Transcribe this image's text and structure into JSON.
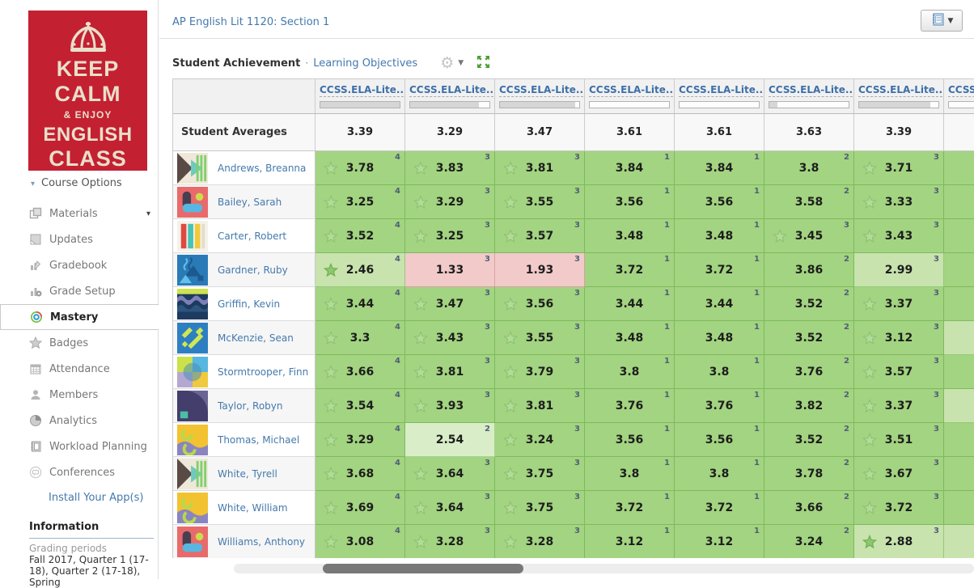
{
  "colors": {
    "accent_blue": "#4479ad",
    "green": "#a3d481",
    "light_green": "#c8e3ae",
    "pink": "#f2caca",
    "poster_red": "#c32032",
    "poster_cream": "#e9dfca"
  },
  "sidebar": {
    "poster_lines": {
      "l1": "KEEP",
      "l2": "CALM",
      "l3": "& ENJOY",
      "l4": "ENGLISH",
      "l5": "CLASS"
    },
    "course_options": "Course Options",
    "nav": [
      {
        "label": "Materials",
        "icon": "materials-icon",
        "active": false,
        "has_caret": true
      },
      {
        "label": "Updates",
        "icon": "updates-icon",
        "active": false,
        "has_caret": false
      },
      {
        "label": "Gradebook",
        "icon": "gradebook-icon",
        "active": false,
        "has_caret": false
      },
      {
        "label": "Grade Setup",
        "icon": "grade-setup-icon",
        "active": false,
        "has_caret": false
      },
      {
        "label": "Mastery",
        "icon": "mastery-icon",
        "active": true,
        "has_caret": false
      },
      {
        "label": "Badges",
        "icon": "badges-icon",
        "active": false,
        "has_caret": false
      },
      {
        "label": "Attendance",
        "icon": "attendance-icon",
        "active": false,
        "has_caret": false
      },
      {
        "label": "Members",
        "icon": "members-icon",
        "active": false,
        "has_caret": false
      },
      {
        "label": "Analytics",
        "icon": "analytics-icon",
        "active": false,
        "has_caret": false
      },
      {
        "label": "Workload Planning",
        "icon": "workload-icon",
        "active": false,
        "has_caret": false
      },
      {
        "label": "Conferences",
        "icon": "conferences-icon",
        "active": false,
        "has_caret": false
      }
    ],
    "install_link": "Install Your App(s)",
    "information": {
      "heading": "Information",
      "grading_periods_label": "Grading periods",
      "grading_periods_value": "Fall 2017, Quarter 1 (17-18), Quarter 2 (17-18), Spring"
    }
  },
  "header": {
    "course_title": "AP English Lit 1120: Section 1"
  },
  "toolbar": {
    "title": "Student Achievement",
    "separator": "·",
    "link": "Learning Objectives"
  },
  "table": {
    "averages_label": "Student Averages",
    "columns": [
      {
        "label": "CCSS.ELA-Lite...",
        "progress": 100
      },
      {
        "label": "CCSS.ELA-Lite...",
        "progress": 87
      },
      {
        "label": "CCSS.ELA-Lite...",
        "progress": 95
      },
      {
        "label": "CCSS.ELA-Lite...",
        "progress": 0
      },
      {
        "label": "CCSS.ELA-Lite...",
        "progress": 0
      },
      {
        "label": "CCSS.ELA-Lite...",
        "progress": 10
      },
      {
        "label": "CCSS.ELA-Lite...",
        "progress": 90
      },
      {
        "label": "CCSS.ELA-Lite...",
        "progress": 0
      }
    ],
    "averages": [
      "3.39",
      "3.29",
      "3.47",
      "3.61",
      "3.61",
      "3.63",
      "3.39",
      ""
    ],
    "students": [
      {
        "name": "Andrews, Breanna",
        "avatar": "a1",
        "cells": [
          {
            "star": "outline",
            "value": "3.78",
            "sup": "4",
            "bg": "green"
          },
          {
            "star": "outline",
            "value": "3.83",
            "sup": "3",
            "bg": "green"
          },
          {
            "star": "outline",
            "value": "3.81",
            "sup": "3",
            "bg": "green"
          },
          {
            "star": "none",
            "value": "3.84",
            "sup": "1",
            "bg": "green"
          },
          {
            "star": "none",
            "value": "3.84",
            "sup": "1",
            "bg": "green"
          },
          {
            "star": "none",
            "value": "3.8",
            "sup": "2",
            "bg": "green"
          },
          {
            "star": "outline",
            "value": "3.71",
            "sup": "3",
            "bg": "green"
          },
          {
            "star": "none",
            "value": "",
            "sup": "",
            "bg": "green"
          }
        ]
      },
      {
        "name": "Bailey, Sarah",
        "avatar": "a2",
        "cells": [
          {
            "star": "outline",
            "value": "3.25",
            "sup": "4",
            "bg": "green"
          },
          {
            "star": "outline",
            "value": "3.29",
            "sup": "3",
            "bg": "green"
          },
          {
            "star": "outline",
            "value": "3.55",
            "sup": "3",
            "bg": "green"
          },
          {
            "star": "none",
            "value": "3.56",
            "sup": "1",
            "bg": "green"
          },
          {
            "star": "none",
            "value": "3.56",
            "sup": "1",
            "bg": "green"
          },
          {
            "star": "none",
            "value": "3.58",
            "sup": "2",
            "bg": "green"
          },
          {
            "star": "outline",
            "value": "3.33",
            "sup": "3",
            "bg": "green"
          },
          {
            "star": "none",
            "value": "",
            "sup": "",
            "bg": "green"
          }
        ]
      },
      {
        "name": "Carter, Robert",
        "avatar": "a3",
        "cells": [
          {
            "star": "outline",
            "value": "3.52",
            "sup": "4",
            "bg": "green"
          },
          {
            "star": "outline",
            "value": "3.25",
            "sup": "3",
            "bg": "green"
          },
          {
            "star": "outline",
            "value": "3.57",
            "sup": "3",
            "bg": "green"
          },
          {
            "star": "none",
            "value": "3.48",
            "sup": "1",
            "bg": "green"
          },
          {
            "star": "none",
            "value": "3.48",
            "sup": "1",
            "bg": "green"
          },
          {
            "star": "outline",
            "value": "3.45",
            "sup": "3",
            "bg": "green"
          },
          {
            "star": "outline",
            "value": "3.43",
            "sup": "3",
            "bg": "green"
          },
          {
            "star": "none",
            "value": "",
            "sup": "",
            "bg": "green"
          }
        ]
      },
      {
        "name": "Gardner, Ruby",
        "avatar": "a4",
        "cells": [
          {
            "star": "filled",
            "value": "2.46",
            "sup": "4",
            "bg": "light"
          },
          {
            "star": "none",
            "value": "1.33",
            "sup": "3",
            "bg": "pink"
          },
          {
            "star": "none",
            "value": "1.93",
            "sup": "3",
            "bg": "pink"
          },
          {
            "star": "none",
            "value": "3.72",
            "sup": "1",
            "bg": "green"
          },
          {
            "star": "none",
            "value": "3.72",
            "sup": "1",
            "bg": "green"
          },
          {
            "star": "none",
            "value": "3.86",
            "sup": "2",
            "bg": "green"
          },
          {
            "star": "none",
            "value": "2.99",
            "sup": "3",
            "bg": "light"
          },
          {
            "star": "none",
            "value": "",
            "sup": "",
            "bg": "green"
          }
        ]
      },
      {
        "name": "Griffin, Kevin",
        "avatar": "a5",
        "cells": [
          {
            "star": "outline",
            "value": "3.44",
            "sup": "4",
            "bg": "green"
          },
          {
            "star": "outline",
            "value": "3.47",
            "sup": "3",
            "bg": "green"
          },
          {
            "star": "outline",
            "value": "3.56",
            "sup": "3",
            "bg": "green"
          },
          {
            "star": "none",
            "value": "3.44",
            "sup": "1",
            "bg": "green"
          },
          {
            "star": "none",
            "value": "3.44",
            "sup": "1",
            "bg": "green"
          },
          {
            "star": "none",
            "value": "3.52",
            "sup": "2",
            "bg": "green"
          },
          {
            "star": "outline",
            "value": "3.37",
            "sup": "3",
            "bg": "green"
          },
          {
            "star": "none",
            "value": "",
            "sup": "",
            "bg": "green"
          }
        ]
      },
      {
        "name": "McKenzie, Sean",
        "avatar": "a6",
        "cells": [
          {
            "star": "outline",
            "value": "3.3",
            "sup": "4",
            "bg": "green"
          },
          {
            "star": "outline",
            "value": "3.43",
            "sup": "3",
            "bg": "green"
          },
          {
            "star": "outline",
            "value": "3.55",
            "sup": "3",
            "bg": "green"
          },
          {
            "star": "none",
            "value": "3.48",
            "sup": "1",
            "bg": "green"
          },
          {
            "star": "none",
            "value": "3.48",
            "sup": "1",
            "bg": "green"
          },
          {
            "star": "none",
            "value": "3.52",
            "sup": "2",
            "bg": "green"
          },
          {
            "star": "outline",
            "value": "3.12",
            "sup": "3",
            "bg": "green"
          },
          {
            "star": "none",
            "value": "",
            "sup": "",
            "bg": "light"
          }
        ]
      },
      {
        "name": "Stormtrooper, Finn",
        "avatar": "a7",
        "cells": [
          {
            "star": "outline",
            "value": "3.66",
            "sup": "4",
            "bg": "green"
          },
          {
            "star": "outline",
            "value": "3.81",
            "sup": "3",
            "bg": "green"
          },
          {
            "star": "outline",
            "value": "3.79",
            "sup": "3",
            "bg": "green"
          },
          {
            "star": "none",
            "value": "3.8",
            "sup": "1",
            "bg": "green"
          },
          {
            "star": "none",
            "value": "3.8",
            "sup": "1",
            "bg": "green"
          },
          {
            "star": "none",
            "value": "3.76",
            "sup": "2",
            "bg": "green"
          },
          {
            "star": "outline",
            "value": "3.57",
            "sup": "3",
            "bg": "green"
          },
          {
            "star": "none",
            "value": "",
            "sup": "",
            "bg": "green"
          }
        ]
      },
      {
        "name": "Taylor, Robyn",
        "avatar": "a8",
        "cells": [
          {
            "star": "outline",
            "value": "3.54",
            "sup": "4",
            "bg": "green"
          },
          {
            "star": "outline",
            "value": "3.93",
            "sup": "3",
            "bg": "green"
          },
          {
            "star": "outline",
            "value": "3.81",
            "sup": "3",
            "bg": "green"
          },
          {
            "star": "none",
            "value": "3.76",
            "sup": "1",
            "bg": "green"
          },
          {
            "star": "none",
            "value": "3.76",
            "sup": "1",
            "bg": "green"
          },
          {
            "star": "none",
            "value": "3.82",
            "sup": "2",
            "bg": "green"
          },
          {
            "star": "outline",
            "value": "3.37",
            "sup": "3",
            "bg": "green"
          },
          {
            "star": "none",
            "value": "",
            "sup": "",
            "bg": "light"
          }
        ]
      },
      {
        "name": "Thomas, Michael",
        "avatar": "a9",
        "cells": [
          {
            "star": "outline",
            "value": "3.29",
            "sup": "4",
            "bg": "green"
          },
          {
            "star": "none",
            "value": "2.54",
            "sup": "2",
            "bg": "lighter"
          },
          {
            "star": "outline",
            "value": "3.24",
            "sup": "3",
            "bg": "green"
          },
          {
            "star": "none",
            "value": "3.56",
            "sup": "1",
            "bg": "green"
          },
          {
            "star": "none",
            "value": "3.56",
            "sup": "1",
            "bg": "green"
          },
          {
            "star": "none",
            "value": "3.52",
            "sup": "2",
            "bg": "green"
          },
          {
            "star": "outline",
            "value": "3.51",
            "sup": "3",
            "bg": "green"
          },
          {
            "star": "none",
            "value": "",
            "sup": "",
            "bg": "green"
          }
        ]
      },
      {
        "name": "White, Tyrell",
        "avatar": "a1",
        "cells": [
          {
            "star": "outline",
            "value": "3.68",
            "sup": "4",
            "bg": "green"
          },
          {
            "star": "outline",
            "value": "3.64",
            "sup": "3",
            "bg": "green"
          },
          {
            "star": "outline",
            "value": "3.75",
            "sup": "3",
            "bg": "green"
          },
          {
            "star": "none",
            "value": "3.8",
            "sup": "1",
            "bg": "green"
          },
          {
            "star": "none",
            "value": "3.8",
            "sup": "1",
            "bg": "green"
          },
          {
            "star": "none",
            "value": "3.78",
            "sup": "2",
            "bg": "green"
          },
          {
            "star": "outline",
            "value": "3.67",
            "sup": "3",
            "bg": "green"
          },
          {
            "star": "none",
            "value": "",
            "sup": "",
            "bg": "green"
          }
        ]
      },
      {
        "name": "White, William",
        "avatar": "a9",
        "cells": [
          {
            "star": "outline",
            "value": "3.69",
            "sup": "4",
            "bg": "green"
          },
          {
            "star": "outline",
            "value": "3.64",
            "sup": "3",
            "bg": "green"
          },
          {
            "star": "outline",
            "value": "3.75",
            "sup": "3",
            "bg": "green"
          },
          {
            "star": "none",
            "value": "3.72",
            "sup": "1",
            "bg": "green"
          },
          {
            "star": "none",
            "value": "3.72",
            "sup": "1",
            "bg": "green"
          },
          {
            "star": "none",
            "value": "3.66",
            "sup": "2",
            "bg": "green"
          },
          {
            "star": "outline",
            "value": "3.72",
            "sup": "3",
            "bg": "green"
          },
          {
            "star": "none",
            "value": "",
            "sup": "",
            "bg": "green"
          }
        ]
      },
      {
        "name": "Williams, Anthony",
        "avatar": "a2",
        "cells": [
          {
            "star": "outline",
            "value": "3.08",
            "sup": "4",
            "bg": "green"
          },
          {
            "star": "outline",
            "value": "3.28",
            "sup": "3",
            "bg": "green"
          },
          {
            "star": "outline",
            "value": "3.28",
            "sup": "3",
            "bg": "green"
          },
          {
            "star": "none",
            "value": "3.12",
            "sup": "1",
            "bg": "green"
          },
          {
            "star": "none",
            "value": "3.12",
            "sup": "1",
            "bg": "green"
          },
          {
            "star": "none",
            "value": "3.24",
            "sup": "2",
            "bg": "green"
          },
          {
            "star": "filled",
            "value": "2.88",
            "sup": "3",
            "bg": "light"
          },
          {
            "star": "none",
            "value": "",
            "sup": "",
            "bg": "light"
          }
        ]
      }
    ]
  }
}
